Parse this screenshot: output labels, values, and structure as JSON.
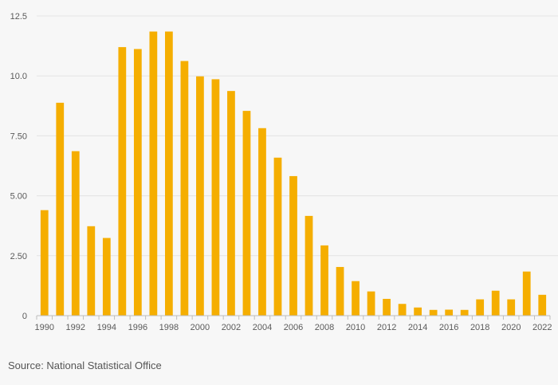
{
  "chart_data": {
    "type": "bar",
    "title": "",
    "xlabel": "",
    "ylabel": "",
    "ylim": [
      0,
      12.5
    ],
    "grid": true,
    "color": "#f5ae00",
    "y_ticks": [
      0,
      2.5,
      5,
      7.5,
      10,
      12.5
    ],
    "y_tick_labels": [
      "0",
      "2.50",
      "5.00",
      "7.50",
      "10.0",
      "12.5"
    ],
    "x_tick_labels": [
      "1990",
      "1992",
      "1994",
      "1996",
      "1998",
      "2000",
      "2002",
      "2004",
      "2006",
      "2008",
      "2010",
      "2012",
      "2014",
      "2016",
      "2018",
      "2020",
      "2022"
    ],
    "categories": [
      "1990",
      "1991",
      "1992",
      "1993",
      "1994",
      "1995",
      "1996",
      "1997",
      "1998",
      "1999",
      "2000",
      "2001",
      "2002",
      "2003",
      "2004",
      "2005",
      "2006",
      "2007",
      "2008",
      "2009",
      "2010",
      "2011",
      "2012",
      "2013",
      "2014",
      "2015",
      "2016",
      "2017",
      "2018",
      "2019",
      "2020",
      "2021",
      "2022"
    ],
    "values": [
      4.4,
      8.88,
      6.86,
      3.73,
      3.24,
      11.2,
      11.12,
      11.85,
      11.85,
      10.62,
      9.98,
      9.86,
      9.37,
      8.54,
      7.82,
      6.59,
      5.82,
      4.16,
      2.93,
      2.03,
      1.44,
      1.01,
      0.7,
      0.49,
      0.34,
      0.24,
      0.25,
      0.24,
      0.68,
      1.04,
      0.68,
      1.84,
      0.87
    ]
  },
  "source": "Source: National Statistical Office"
}
